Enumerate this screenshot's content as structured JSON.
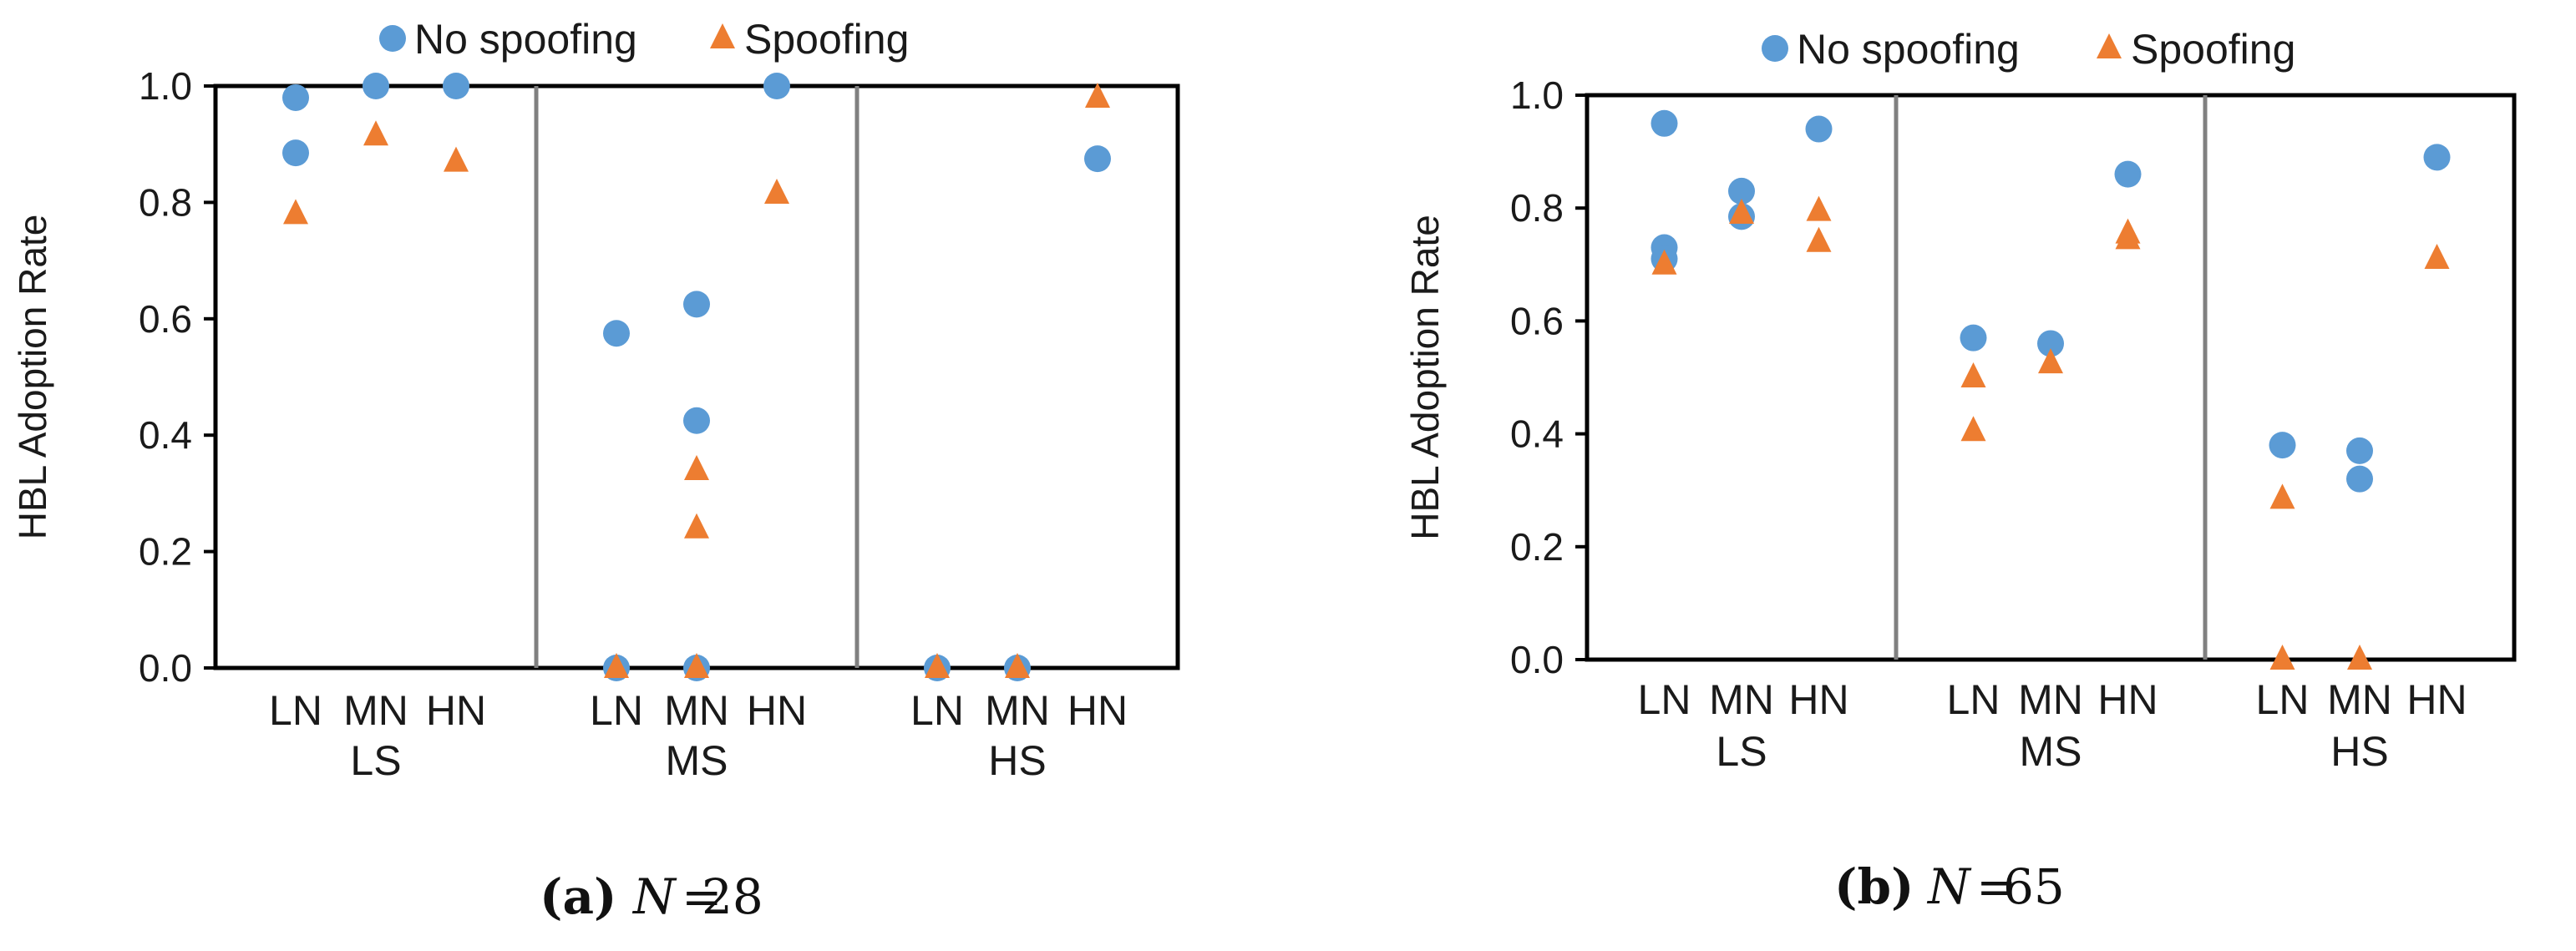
{
  "colors": {
    "no_spoofing": "#5B9BD5",
    "spoofing": "#ED7D31",
    "divider": "#808080",
    "frame": "#000000"
  },
  "chart_data": [
    {
      "type": "scatter",
      "panel_label": "(a)",
      "caption_math": "N = 28",
      "caption_var": "N",
      "caption_eq": "=",
      "caption_value": "28",
      "ylabel": "HBL Adoption Rate",
      "ylim": [
        0,
        1
      ],
      "yticks": [
        "0.0",
        "0.2",
        "0.4",
        "0.6",
        "0.8",
        "1.0"
      ],
      "groups": [
        "LS",
        "MS",
        "HS"
      ],
      "categories": [
        "LN",
        "MN",
        "HN"
      ],
      "legend": [
        "No spoofing",
        "Spoofing"
      ],
      "series": [
        {
          "name": "No spoofing",
          "marker": "circle",
          "values": [
            [
              [
                0.98,
                0.885
              ],
              [
                1.0
              ],
              [
                1.0
              ]
            ],
            [
              [
                0.575,
                0.0
              ],
              [
                0.625,
                0.425,
                0.0
              ],
              [
                1.0
              ]
            ],
            [
              [
                0.0
              ],
              [
                0.0
              ],
              [
                0.875
              ]
            ]
          ]
        },
        {
          "name": "Spoofing",
          "marker": "triangle",
          "values": [
            [
              [
                0.78
              ],
              [
                0.915
              ],
              [
                0.87
              ]
            ],
            [
              [
                0.0
              ],
              [
                0.34,
                0.24,
                0.0
              ],
              [
                0.815
              ]
            ],
            [
              [
                0.0
              ],
              [
                0.0
              ],
              [
                0.98
              ]
            ]
          ]
        }
      ]
    },
    {
      "type": "scatter",
      "panel_label": "(b)",
      "caption_math": "N = 65",
      "caption_var": "N",
      "caption_eq": "=",
      "caption_value": "65",
      "ylabel": "HBL Adoption Rate",
      "ylim": [
        0,
        1
      ],
      "yticks": [
        "0.0",
        "0.2",
        "0.4",
        "0.6",
        "0.8",
        "1.0"
      ],
      "groups": [
        "LS",
        "MS",
        "HS"
      ],
      "categories": [
        "LN",
        "MN",
        "HN"
      ],
      "legend": [
        "No spoofing",
        "Spoofing"
      ],
      "series": [
        {
          "name": "No spoofing",
          "marker": "circle",
          "values": [
            [
              [
                0.95,
                0.73,
                0.71
              ],
              [
                0.83,
                0.785
              ],
              [
                0.94
              ]
            ],
            [
              [
                0.57
              ],
              [
                0.56
              ],
              [
                0.86
              ]
            ],
            [
              [
                0.38
              ],
              [
                0.37,
                0.32
              ],
              [
                0.89
              ]
            ]
          ]
        },
        {
          "name": "Spoofing",
          "marker": "triangle",
          "values": [
            [
              [
                0.7
              ],
              [
                0.79
              ],
              [
                0.795,
                0.74
              ]
            ],
            [
              [
                0.5,
                0.405
              ],
              [
                0.525
              ],
              [
                0.755,
                0.745
              ]
            ],
            [
              [
                0.285,
                0.0
              ],
              [
                0.0
              ],
              [
                0.71
              ]
            ]
          ]
        }
      ]
    }
  ]
}
